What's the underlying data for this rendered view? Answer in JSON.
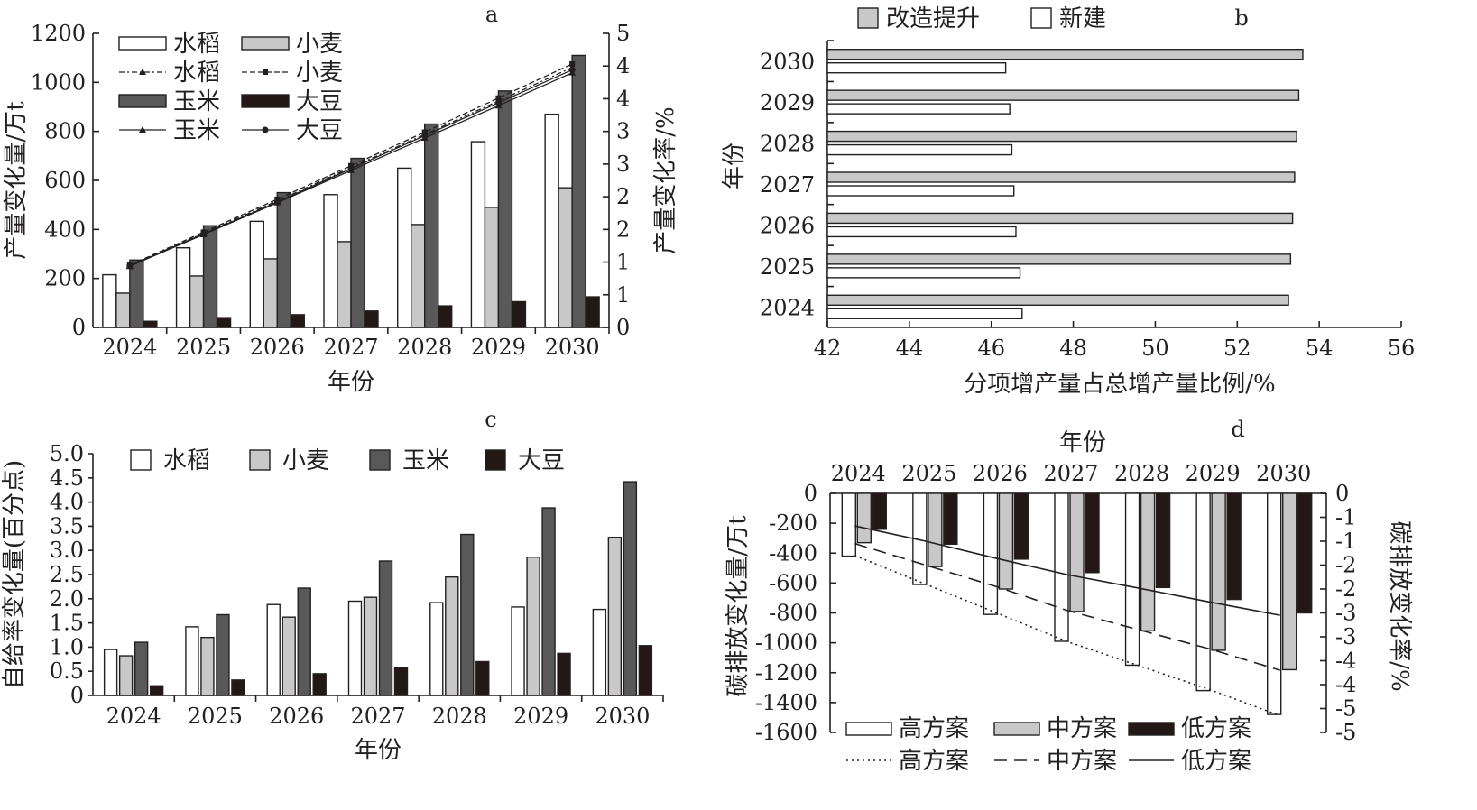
{
  "colors": {
    "rice": "#ffffff",
    "wheat": "#c8c8c8",
    "corn": "#595959",
    "soy": "#231815",
    "ink": "#231f20",
    "reno": "#c8c8c8",
    "newb": "#ffffff",
    "high": "#ffffff",
    "mid": "#c8c8c8",
    "low": "#231815"
  },
  "chart_data": [
    {
      "id": "a",
      "type": "bar+line",
      "title": "a",
      "categories": [
        "2024",
        "2025",
        "2026",
        "2027",
        "2028",
        "2029",
        "2030"
      ],
      "xlabel": "年份",
      "ylabel": "产量变化量/万t",
      "ylabel2": "产量变化率/%",
      "ylim": [
        0,
        1200
      ],
      "y2lim": [
        0,
        5
      ],
      "yticks": [
        "0",
        "200",
        "400",
        "600",
        "800",
        "1000",
        "1200"
      ],
      "y2ticks": [
        "0",
        "1",
        "1",
        "2",
        "2",
        "3",
        "3",
        "4",
        "4",
        "5"
      ],
      "legend": [
        "水稻",
        "小麦",
        "水稻",
        "小麦",
        "玉米",
        "大豆",
        "玉米",
        "大豆"
      ],
      "series": [
        {
          "name": "水稻",
          "kind": "bar",
          "values": [
            215,
            325,
            433,
            542,
            650,
            758,
            870
          ]
        },
        {
          "name": "小麦",
          "kind": "bar",
          "values": [
            140,
            210,
            280,
            350,
            420,
            490,
            570
          ]
        },
        {
          "name": "玉米",
          "kind": "bar",
          "values": [
            275,
            415,
            550,
            690,
            830,
            965,
            1110
          ]
        },
        {
          "name": "大豆",
          "kind": "bar",
          "values": [
            25,
            40,
            52,
            67,
            88,
            105,
            125
          ]
        },
        {
          "name": "水稻",
          "kind": "line",
          "values": [
            1.05,
            1.6,
            2.15,
            2.72,
            3.28,
            3.85,
            4.42
          ]
        },
        {
          "name": "小麦",
          "kind": "line",
          "values": [
            1.06,
            1.62,
            2.18,
            2.75,
            3.32,
            3.9,
            4.48
          ]
        },
        {
          "name": "玉米",
          "kind": "line",
          "values": [
            1.04,
            1.58,
            2.12,
            2.67,
            3.22,
            3.77,
            4.33
          ]
        },
        {
          "name": "大豆",
          "kind": "line",
          "values": [
            1.05,
            1.59,
            2.13,
            2.7,
            3.26,
            3.82,
            4.38
          ]
        }
      ]
    },
    {
      "id": "b",
      "type": "barh",
      "title": "b",
      "categories": [
        "2024",
        "2025",
        "2026",
        "2027",
        "2028",
        "2029",
        "2030"
      ],
      "xlabel": "分项增产量占总增产量比例/%",
      "ylabel": "年份",
      "xlim": [
        42,
        56
      ],
      "xticks": [
        "42",
        "44",
        "46",
        "48",
        "50",
        "52",
        "54",
        "56"
      ],
      "legend": [
        "改造提升",
        "新建"
      ],
      "series": [
        {
          "name": "改造提升",
          "values": [
            53.25,
            53.3,
            53.35,
            53.4,
            53.45,
            53.5,
            53.6
          ]
        },
        {
          "name": "新建",
          "values": [
            46.75,
            46.7,
            46.6,
            46.55,
            46.5,
            46.45,
            46.35
          ]
        }
      ]
    },
    {
      "id": "c",
      "type": "bar",
      "title": "c",
      "categories": [
        "2024",
        "2025",
        "2026",
        "2027",
        "2028",
        "2029",
        "2030"
      ],
      "xlabel": "年份",
      "ylabel": "自给率变化量(百分点)",
      "ylim": [
        0,
        5
      ],
      "yticks": [
        "0",
        "0.5",
        "1.0",
        "1.5",
        "2.0",
        "2.5",
        "3.0",
        "3.5",
        "4.0",
        "4.5",
        "5.0"
      ],
      "legend": [
        "水稻",
        "小麦",
        "玉米",
        "大豆"
      ],
      "series": [
        {
          "name": "水稻",
          "values": [
            0.95,
            1.42,
            1.88,
            1.95,
            1.92,
            1.83,
            1.78
          ]
        },
        {
          "name": "小麦",
          "values": [
            0.82,
            1.2,
            1.62,
            2.03,
            2.45,
            2.86,
            3.27
          ]
        },
        {
          "name": "玉米",
          "values": [
            1.1,
            1.67,
            2.22,
            2.78,
            3.33,
            3.88,
            4.42
          ]
        },
        {
          "name": "大豆",
          "values": [
            0.2,
            0.32,
            0.45,
            0.57,
            0.7,
            0.87,
            1.03
          ]
        }
      ]
    },
    {
      "id": "d",
      "type": "bar+line",
      "title": "d",
      "categories": [
        "2024",
        "2025",
        "2026",
        "2027",
        "2028",
        "2029",
        "2030"
      ],
      "xlabel": "年份",
      "ylabel": "碳排放变化量/万t",
      "ylabel2": "碳排放变化率/%",
      "ylim": [
        -1600,
        0
      ],
      "y2lim": [
        -5,
        0
      ],
      "yticks": [
        "0",
        "-200",
        "-400",
        "-600",
        "-800",
        "-1000",
        "-1200",
        "-1400",
        "-1600"
      ],
      "y2ticks": [
        "0",
        "-1",
        "-1",
        "-2",
        "-2",
        "-3",
        "-3",
        "-4",
        "-4",
        "-5",
        "-5"
      ],
      "legend": [
        "高方案",
        "中方案",
        "低方案",
        "高方案",
        "中方案",
        "低方案"
      ],
      "series": [
        {
          "name": "高方案",
          "kind": "bar",
          "values": [
            -420,
            -610,
            -810,
            -990,
            -1150,
            -1320,
            -1480
          ]
        },
        {
          "name": "中方案",
          "kind": "bar",
          "values": [
            -330,
            -490,
            -640,
            -790,
            -920,
            -1050,
            -1180
          ]
        },
        {
          "name": "低方案",
          "kind": "bar",
          "values": [
            -240,
            -340,
            -440,
            -530,
            -630,
            -710,
            -800
          ]
        },
        {
          "name": "高方案",
          "kind": "line",
          "values": [
            -1.3,
            -1.9,
            -2.5,
            -3.1,
            -3.6,
            -4.1,
            -4.65
          ]
        },
        {
          "name": "中方案",
          "kind": "line",
          "values": [
            -1.05,
            -1.5,
            -1.95,
            -2.45,
            -2.85,
            -3.25,
            -3.7
          ]
        },
        {
          "name": "低方案",
          "kind": "line",
          "values": [
            -0.68,
            -1.0,
            -1.36,
            -1.7,
            -1.98,
            -2.27,
            -2.55
          ]
        }
      ]
    }
  ]
}
